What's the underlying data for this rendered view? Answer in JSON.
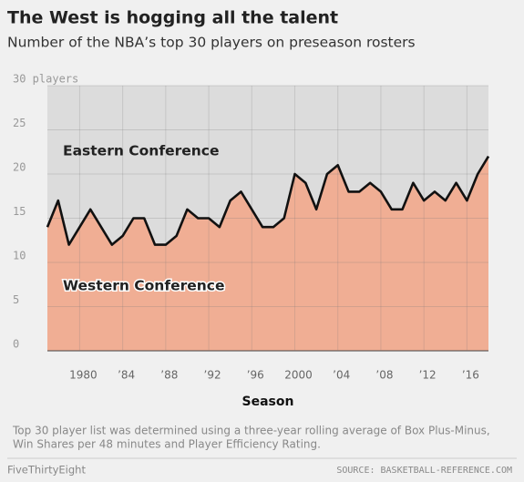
{
  "chart_data": {
    "type": "area",
    "title": "The West is hogging all the talent",
    "subtitle": "Number of the NBA’s top 30 players on preseason rosters",
    "x_label": "Season",
    "x": [
      1977,
      1978,
      1979,
      1980,
      1981,
      1982,
      1983,
      1984,
      1985,
      1986,
      1987,
      1988,
      1989,
      1990,
      1991,
      1992,
      1993,
      1994,
      1995,
      1996,
      1997,
      1998,
      1999,
      2000,
      2001,
      2002,
      2003,
      2004,
      2005,
      2006,
      2007,
      2008,
      2009,
      2010,
      2011,
      2012,
      2013,
      2014,
      2015,
      2016,
      2017,
      2018
    ],
    "series": [
      {
        "name": "Western Conference",
        "color": "#f0ae94",
        "line_color": "#111111",
        "values": [
          14,
          17,
          12,
          14,
          16,
          14,
          12,
          13,
          15,
          15,
          12,
          12,
          13,
          16,
          15,
          15,
          14,
          17,
          18,
          16,
          14,
          14,
          15,
          20,
          19,
          16,
          20,
          21,
          18,
          18,
          19,
          18,
          16,
          16,
          19,
          17,
          18,
          17,
          19,
          17,
          20,
          22
        ]
      },
      {
        "name": "Eastern Conference",
        "color": "#dcdcdc",
        "values": [
          16,
          13,
          18,
          16,
          14,
          16,
          18,
          17,
          15,
          15,
          18,
          18,
          17,
          14,
          15,
          15,
          16,
          13,
          12,
          14,
          16,
          16,
          15,
          10,
          11,
          14,
          10,
          9,
          12,
          12,
          11,
          12,
          14,
          14,
          11,
          13,
          12,
          13,
          11,
          13,
          10,
          8
        ]
      }
    ],
    "stacked": true,
    "xlim": [
      1977,
      2018
    ],
    "xticks": [
      1980,
      {
        "value": 1984,
        "label": "’84"
      },
      {
        "value": 1988,
        "label": "’88"
      },
      {
        "value": 1992,
        "label": "’92"
      },
      {
        "value": 1996,
        "label": "’96"
      },
      2000,
      {
        "value": 2004,
        "label": "’04"
      },
      {
        "value": 2008,
        "label": "’08"
      },
      {
        "value": 2012,
        "label": "’12"
      },
      {
        "value": 2016,
        "label": "’16"
      }
    ],
    "ylim": [
      0,
      30
    ],
    "yticks": [
      0,
      5,
      10,
      15,
      20,
      25,
      {
        "value": 30,
        "label": "30 players"
      }
    ],
    "grid": true,
    "note": "Top 30 player list was determined using a three-year rolling average of Box Plus-Minus,",
    "note2": "Win Shares per 48 minutes and Player Efficiency Rating.",
    "brand": "FiveThirtyEight",
    "source": "SOURCE: BASKETBALL-REFERENCE.COM"
  }
}
